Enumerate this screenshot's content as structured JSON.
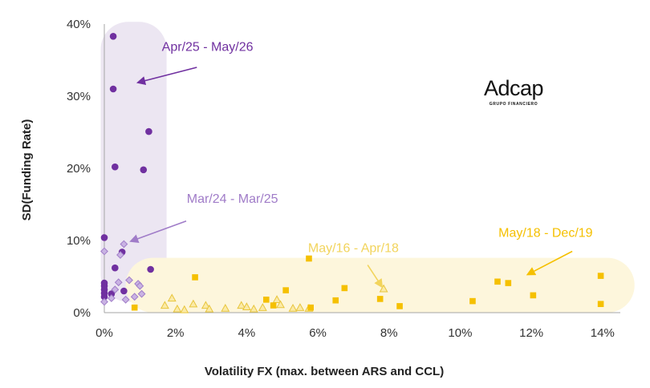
{
  "chart_data": {
    "type": "scatter",
    "title": "",
    "xlabel": "Volatility FX (max. between ARS and CCL)",
    "ylabel": "SD(Funding Rate)",
    "xlim": [
      0,
      14.5
    ],
    "ylim": [
      0,
      40
    ],
    "x_ticks": [
      0,
      2,
      4,
      6,
      8,
      10,
      12,
      14
    ],
    "x_tick_labels": [
      "0%",
      "2%",
      "4%",
      "6%",
      "8%",
      "10%",
      "12%",
      "14%"
    ],
    "y_ticks": [
      0,
      10,
      20,
      30,
      40
    ],
    "y_tick_labels": [
      "0%",
      "10%",
      "20%",
      "30%",
      "40%"
    ],
    "grid": false,
    "logo": {
      "text": "Adcap",
      "subtext": "GRUPO FINANCIERO"
    },
    "colors": {
      "apr25_may26": "#7030a0",
      "mar24_mar25": "#a07cc8",
      "may16_apr18": "#f2d45c",
      "may18_dec19": "#f5c000",
      "band_purple": "#ece6f2",
      "band_yellow": "#fdf6dc"
    },
    "series": [
      {
        "name": "Apr/25 - May/26",
        "marker": "circle",
        "color": "#7030a0",
        "points": [
          [
            0.25,
            38.3
          ],
          [
            0.25,
            31.0
          ],
          [
            0.3,
            20.2
          ],
          [
            1.25,
            25.1
          ],
          [
            1.1,
            19.8
          ],
          [
            0.0,
            10.4
          ],
          [
            0.5,
            8.4
          ],
          [
            0.3,
            6.2
          ],
          [
            1.3,
            6.0
          ],
          [
            0.0,
            4.1
          ],
          [
            0.0,
            3.7
          ],
          [
            0.0,
            3.2
          ],
          [
            0.0,
            2.7
          ],
          [
            0.0,
            2.2
          ],
          [
            0.2,
            2.6
          ],
          [
            0.55,
            3.0
          ]
        ]
      },
      {
        "name": "Mar/24 - Mar/25",
        "marker": "diamond",
        "color": "#a07cc8",
        "points": [
          [
            0.55,
            9.5
          ],
          [
            0.45,
            8.0
          ],
          [
            0.0,
            8.5
          ],
          [
            0.4,
            4.2
          ],
          [
            0.7,
            4.5
          ],
          [
            0.95,
            4.0
          ],
          [
            1.0,
            3.7
          ],
          [
            0.3,
            3.2
          ],
          [
            1.05,
            2.6
          ],
          [
            0.2,
            2.0
          ],
          [
            0.6,
            1.8
          ],
          [
            0.85,
            2.2
          ],
          [
            0.0,
            1.5
          ]
        ]
      },
      {
        "name": "May/16 - Apr/18",
        "marker": "triangle",
        "color": "#f2d45c",
        "points": [
          [
            1.7,
            1.0
          ],
          [
            1.9,
            2.0
          ],
          [
            2.05,
            0.5
          ],
          [
            2.25,
            0.4
          ],
          [
            2.5,
            1.2
          ],
          [
            2.85,
            1.0
          ],
          [
            2.95,
            0.5
          ],
          [
            3.4,
            0.6
          ],
          [
            3.85,
            1.0
          ],
          [
            4.0,
            0.8
          ],
          [
            4.2,
            0.5
          ],
          [
            4.45,
            0.7
          ],
          [
            4.85,
            1.8
          ],
          [
            4.95,
            1.1
          ],
          [
            5.3,
            0.6
          ],
          [
            5.5,
            0.7
          ],
          [
            5.75,
            0.6
          ],
          [
            7.85,
            3.3
          ]
        ]
      },
      {
        "name": "May/18 - Dec/19",
        "marker": "square",
        "color": "#f5c000",
        "points": [
          [
            0.85,
            0.7
          ],
          [
            2.55,
            4.9
          ],
          [
            4.55,
            1.8
          ],
          [
            4.75,
            1.0
          ],
          [
            5.1,
            3.1
          ],
          [
            5.75,
            7.5
          ],
          [
            5.8,
            0.7
          ],
          [
            6.5,
            1.7
          ],
          [
            6.75,
            3.4
          ],
          [
            7.75,
            1.9
          ],
          [
            8.3,
            0.9
          ],
          [
            10.35,
            1.6
          ],
          [
            11.05,
            4.3
          ],
          [
            11.35,
            4.1
          ],
          [
            12.05,
            2.4
          ],
          [
            13.95,
            5.1
          ],
          [
            13.95,
            1.2
          ]
        ]
      }
    ],
    "annotations": [
      {
        "text": "Apr/25 - May/26",
        "series": "Apr/25 - May/26",
        "color": "#7030a0",
        "label_at": [
          2.9,
          36.3
        ],
        "arrow_from": [
          2.6,
          34.0
        ],
        "arrow_to": [
          0.95,
          31.9
        ]
      },
      {
        "text": "Mar/24 - Mar/25",
        "series": "Mar/24 - Mar/25",
        "color": "#a07cc8",
        "label_at": [
          3.6,
          15.2
        ],
        "arrow_from": [
          2.3,
          12.7
        ],
        "arrow_to": [
          0.75,
          9.9
        ]
      },
      {
        "text": "May/16 - Apr/18",
        "series": "May/16 - Apr/18",
        "color": "#f2d45c",
        "label_at": [
          7.0,
          8.4
        ],
        "arrow_from": [
          7.4,
          6.6
        ],
        "arrow_to": [
          7.8,
          3.6
        ]
      },
      {
        "text": "May/18 - Dec/19",
        "series": "May/18 - Dec/19",
        "color": "#f5c000",
        "label_at": [
          12.4,
          10.5
        ],
        "arrow_from": [
          13.15,
          8.5
        ],
        "arrow_to": [
          11.9,
          5.3
        ]
      }
    ],
    "bands": [
      {
        "name": "Apr/25 - May/26 band",
        "color": "#ece6f2",
        "x": [
          -0.1,
          1.75
        ],
        "y": [
          1.5,
          40.3
        ]
      },
      {
        "name": "May/16 - Apr/18 band",
        "color": "#fdf6dc",
        "x": [
          0.6,
          14.9
        ],
        "y": [
          0.0,
          7.6
        ]
      }
    ]
  }
}
